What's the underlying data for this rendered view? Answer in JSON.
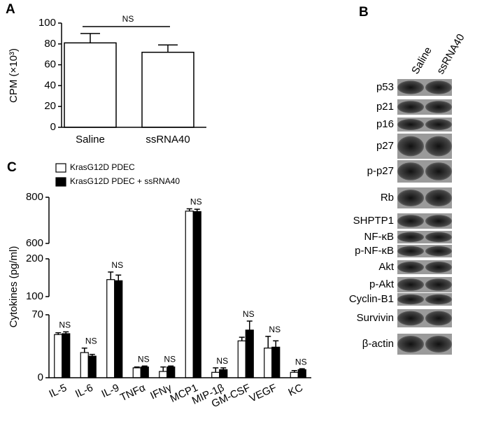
{
  "chart_data": [
    {
      "type": "bar",
      "panel": "A",
      "y_label": "CPM (×10³)",
      "categories": [
        "Saline",
        "ssRNA40"
      ],
      "values": [
        81,
        72
      ],
      "errors": [
        9,
        7
      ],
      "color": "#ffffff",
      "ylim": [
        0,
        100
      ],
      "yticks": [
        0,
        20,
        40,
        60,
        80,
        100
      ],
      "annotation": "NS"
    },
    {
      "type": "grouped-bar-broken",
      "panel": "C",
      "y_label": "Cytokines (pg/ml)",
      "categories": [
        "IL-5",
        "IL-6",
        "IL-9",
        "TNFα",
        "IFNγ",
        "MCP1",
        "MIP-1β",
        "GM-CSF",
        "VEGF",
        "KC"
      ],
      "series": [
        {
          "name": "KrasG12D PDEC",
          "color": "#ffffff",
          "values": [
            48,
            28,
            145,
            11,
            7,
            740,
            6,
            41,
            33,
            6
          ],
          "errors": [
            2,
            5,
            20,
            1,
            5,
            10,
            5,
            4,
            13,
            2
          ]
        },
        {
          "name": "KrasG12D PDEC + ssRNA40",
          "color": "#000000",
          "values": [
            49,
            24,
            142,
            12,
            12,
            738,
            9,
            53,
            34,
            9
          ],
          "errors": [
            2,
            2,
            15,
            1,
            1,
            10,
            2,
            10,
            7,
            1
          ]
        }
      ],
      "ylim_segments": [
        [
          0,
          70
        ],
        [
          100,
          200
        ],
        [
          600,
          800
        ]
      ],
      "yticks": [
        0,
        70,
        100,
        200,
        600,
        800
      ],
      "annotations": [
        "NS",
        "NS",
        "NS",
        "NS",
        "NS",
        "NS",
        "NS",
        "NS",
        "NS",
        "NS"
      ]
    }
  ],
  "blot": {
    "panel": "B",
    "columns": [
      "Saline",
      "ssRNA40"
    ],
    "rows": [
      "p53",
      "p21",
      "p16",
      "p27",
      "p-p27",
      "Rb",
      "SHPTP1",
      "NF-κB",
      "p-NF-κB",
      "Akt",
      "p-Akt",
      "Cyclin-B1",
      "Survivin",
      "β-actin"
    ]
  }
}
